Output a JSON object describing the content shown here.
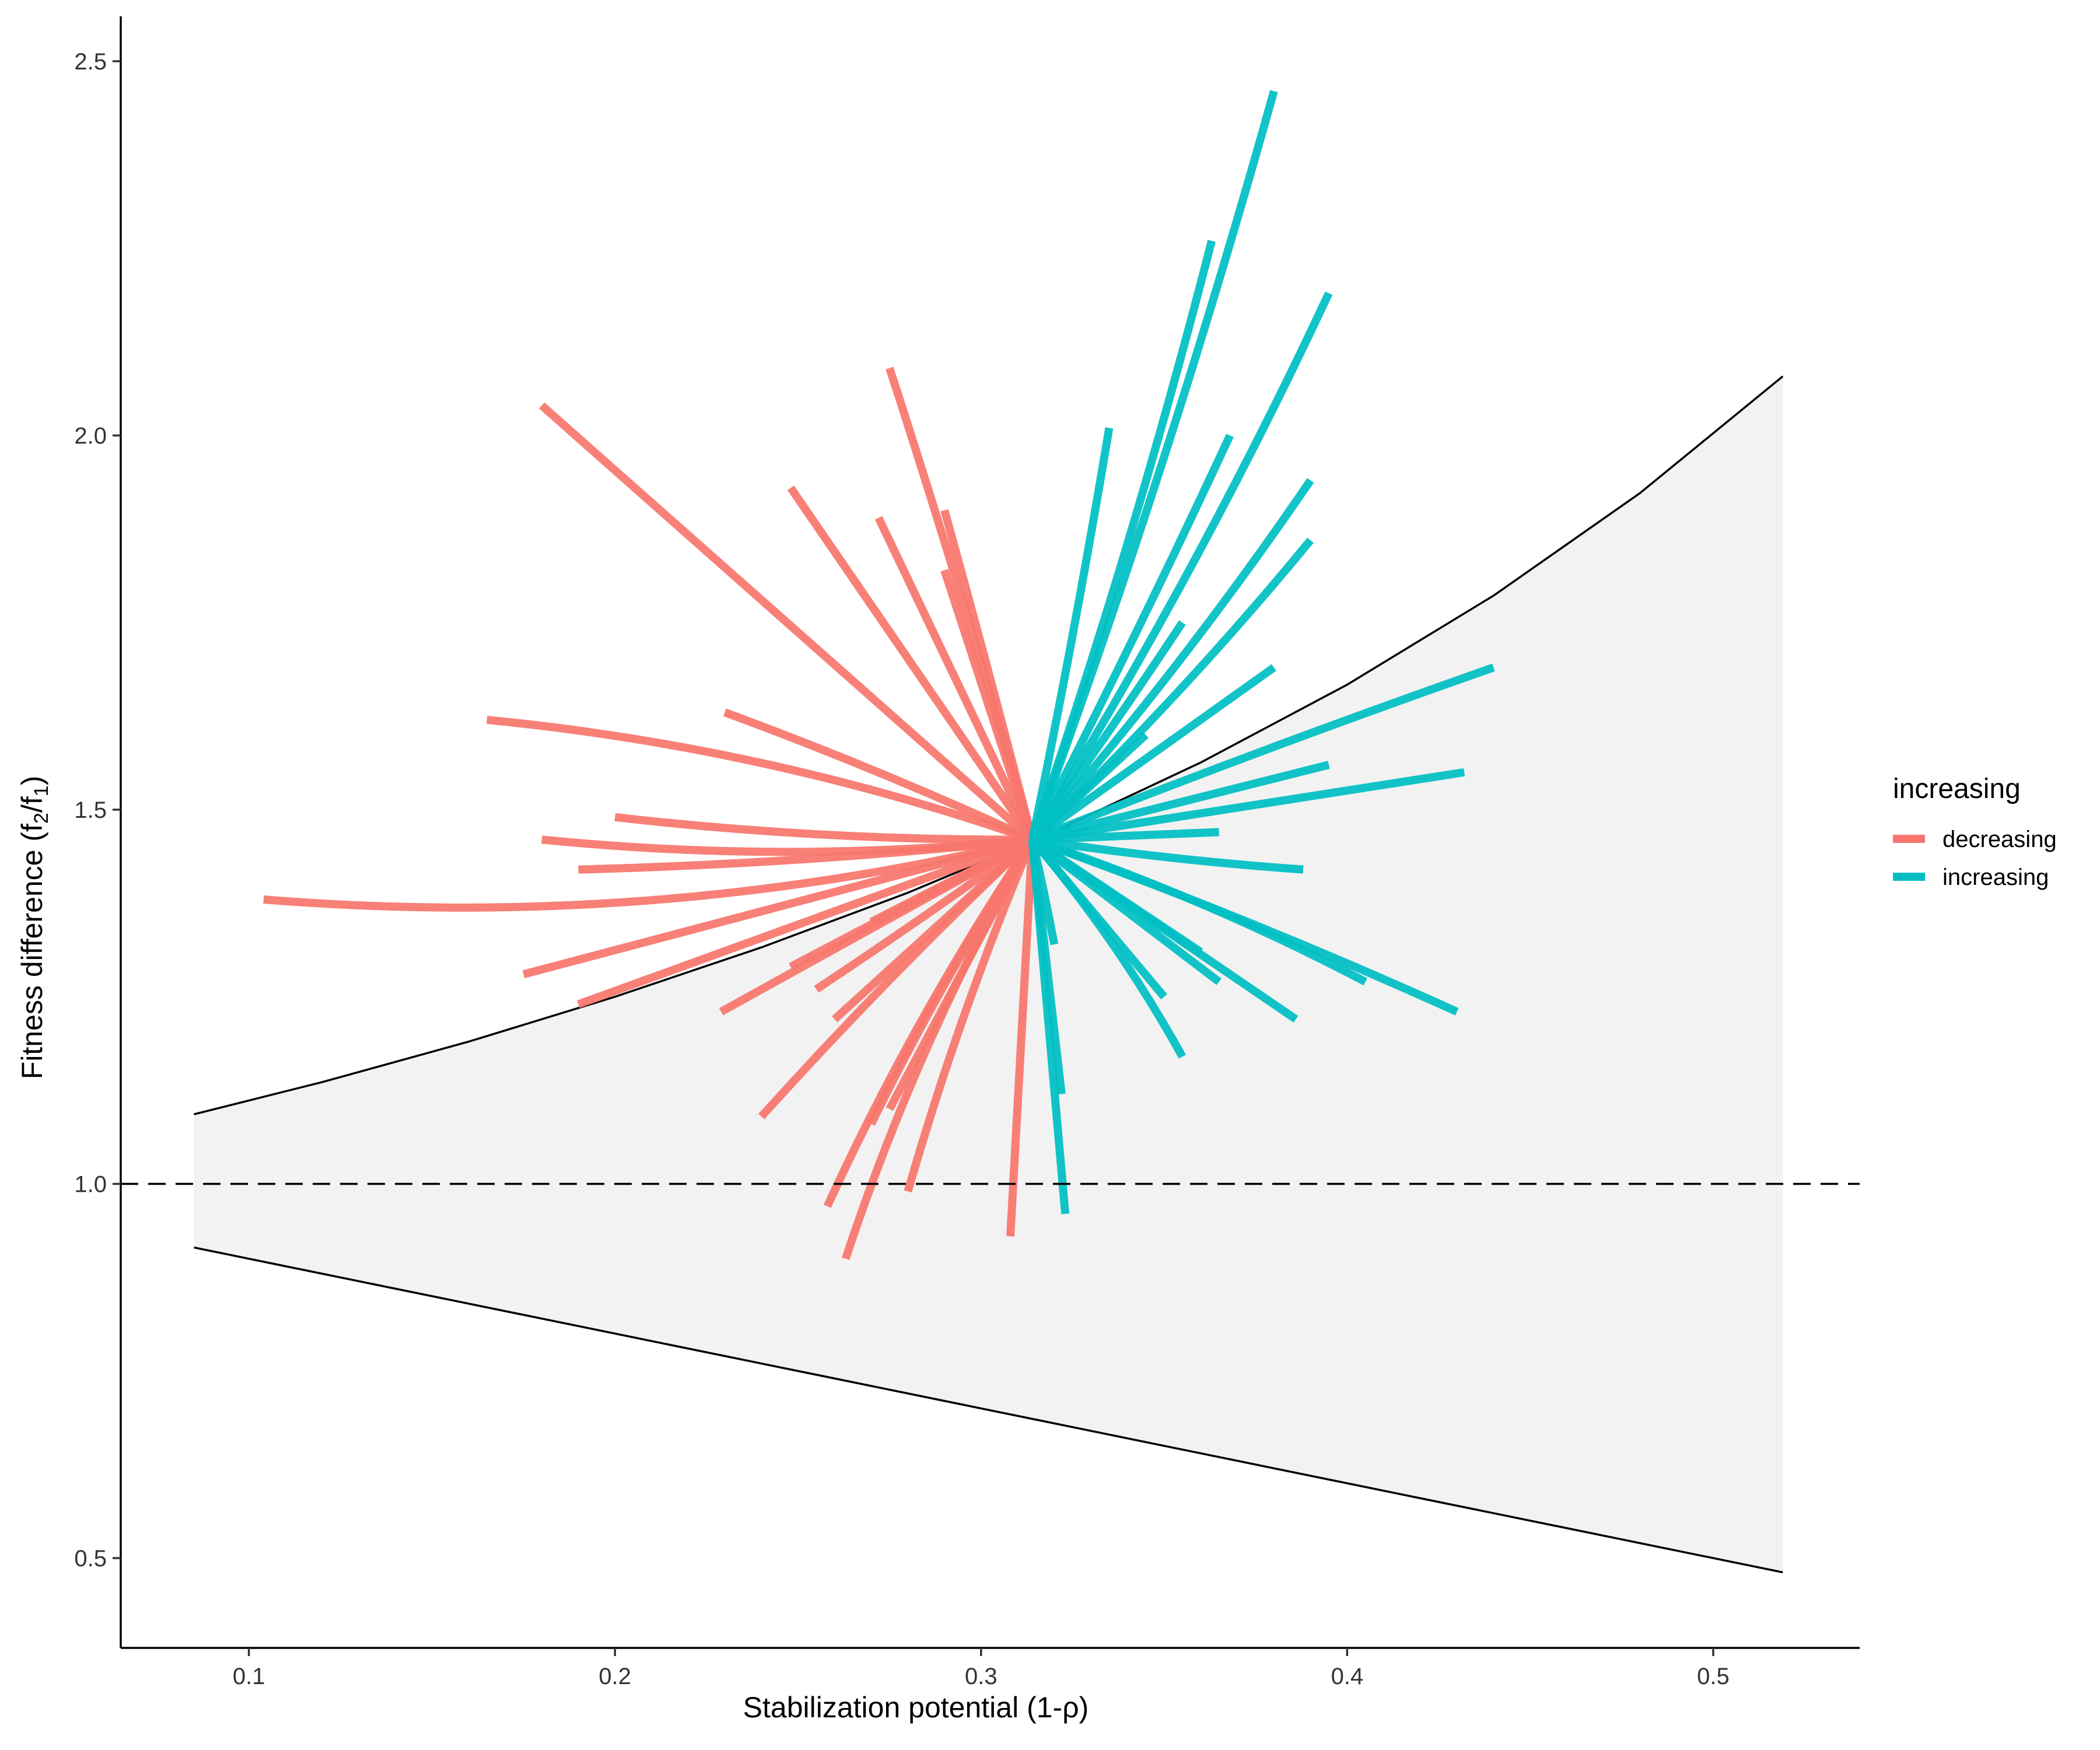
{
  "chart_data": {
    "type": "line",
    "title": "",
    "xlabel": "Stabilization potential (1-ρ)",
    "ylabel_parts": [
      "Fitness difference (f",
      "2",
      "/f",
      "1",
      ")"
    ],
    "xlim": [
      0.065,
      0.54
    ],
    "ylim": [
      0.38,
      2.56
    ],
    "x_ticks": [
      0.1,
      0.2,
      0.3,
      0.4,
      0.5
    ],
    "x_tick_labels": [
      "0.1",
      "0.2",
      "0.3",
      "0.4",
      "0.5"
    ],
    "y_ticks": [
      0.5,
      1.0,
      1.5,
      2.0,
      2.5
    ],
    "y_tick_labels": [
      "0.5",
      "1.0",
      "1.5",
      "2.0",
      "2.5"
    ],
    "reference_line_y": 1.0,
    "coexistence_region": {
      "upper_boundary": [
        [
          0.085,
          1.093
        ],
        [
          0.12,
          1.136
        ],
        [
          0.16,
          1.19
        ],
        [
          0.2,
          1.25
        ],
        [
          0.24,
          1.316
        ],
        [
          0.28,
          1.389
        ],
        [
          0.32,
          1.471
        ],
        [
          0.36,
          1.563
        ],
        [
          0.4,
          1.667
        ],
        [
          0.44,
          1.786
        ],
        [
          0.48,
          1.923
        ],
        [
          0.519,
          2.079
        ]
      ],
      "lower_boundary": [
        [
          0.085,
          0.915
        ],
        [
          0.519,
          0.481
        ]
      ],
      "fill": "#f2f2f2"
    },
    "origin": [
      0.314,
      1.46
    ],
    "legend": {
      "title": "increasing",
      "position": "right",
      "entries": [
        {
          "label": "decreasing",
          "color": "#F8766D"
        },
        {
          "label": "increasing",
          "color": "#00BFC4"
        }
      ]
    },
    "series": [
      {
        "group": "decreasing",
        "color": "#F8766D",
        "curves": [
          [
            0.18,
            2.04,
            0.0
          ],
          [
            0.275,
            2.09,
            0.01
          ],
          [
            0.248,
            1.93,
            0.0
          ],
          [
            0.272,
            1.89,
            0.0
          ],
          [
            0.29,
            1.9,
            0.005
          ],
          [
            0.29,
            1.82,
            0.0
          ],
          [
            0.165,
            1.62,
            0.06
          ],
          [
            0.23,
            1.63,
            0.02
          ],
          [
            0.104,
            1.38,
            -0.08
          ],
          [
            0.18,
            1.46,
            -0.05
          ],
          [
            0.2,
            1.49,
            -0.03
          ],
          [
            0.19,
            1.42,
            -0.02
          ],
          [
            0.175,
            1.28,
            0.0
          ],
          [
            0.19,
            1.24,
            0.0
          ],
          [
            0.248,
            1.29,
            0.0
          ],
          [
            0.229,
            1.23,
            0.0
          ],
          [
            0.255,
            1.26,
            -0.01
          ],
          [
            0.24,
            1.09,
            0.02
          ],
          [
            0.27,
            1.08,
            0.03
          ],
          [
            0.258,
            0.97,
            0.04
          ],
          [
            0.28,
            0.99,
            0.03
          ],
          [
            0.263,
            0.9,
            0.05
          ],
          [
            0.308,
            0.93,
            0.0
          ],
          [
            0.27,
            1.35,
            0.0
          ],
          [
            0.26,
            1.22,
            0.0
          ],
          [
            0.275,
            1.1,
            0.0
          ]
        ]
      },
      {
        "group": "increasing",
        "color": "#00BFC4",
        "curves": [
          [
            0.38,
            2.46,
            0.02
          ],
          [
            0.363,
            2.26,
            0.02
          ],
          [
            0.395,
            2.19,
            0.03
          ],
          [
            0.335,
            2.01,
            0.01
          ],
          [
            0.368,
            2.0,
            0.01
          ],
          [
            0.39,
            1.94,
            0.03
          ],
          [
            0.39,
            1.86,
            0.03
          ],
          [
            0.38,
            1.69,
            0.0
          ],
          [
            0.44,
            1.69,
            -0.01
          ],
          [
            0.395,
            1.56,
            0.0
          ],
          [
            0.432,
            1.55,
            0.0
          ],
          [
            0.365,
            1.47,
            0.0
          ],
          [
            0.388,
            1.42,
            0.02
          ],
          [
            0.405,
            1.27,
            -0.04
          ],
          [
            0.43,
            1.23,
            -0.02
          ],
          [
            0.386,
            1.22,
            0.0
          ],
          [
            0.355,
            1.17,
            -0.05
          ],
          [
            0.365,
            1.27,
            0.0
          ],
          [
            0.35,
            1.25,
            0.0
          ],
          [
            0.322,
            1.12,
            0.0
          ],
          [
            0.323,
            0.96,
            0.0
          ],
          [
            0.32,
            1.32,
            -0.01
          ],
          [
            0.36,
            1.31,
            0.0
          ],
          [
            0.345,
            1.6,
            0.0
          ],
          [
            0.355,
            1.75,
            0.01
          ]
        ]
      }
    ]
  }
}
